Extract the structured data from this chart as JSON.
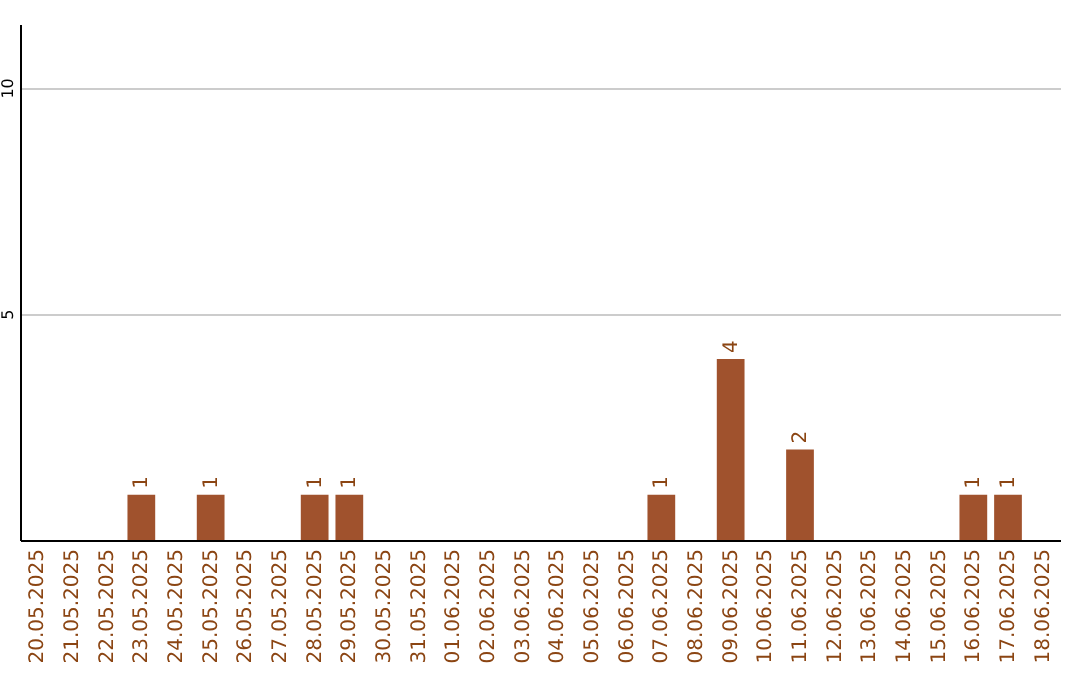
{
  "chart_data": {
    "type": "bar",
    "categories": [
      "20.05.2025",
      "21.05.2025",
      "22.05.2025",
      "23.05.2025",
      "24.05.2025",
      "25.05.2025",
      "26.05.2025",
      "27.05.2025",
      "28.05.2025",
      "29.05.2025",
      "30.05.2025",
      "31.05.2025",
      "01.06.2025",
      "02.06.2025",
      "03.06.2025",
      "04.06.2025",
      "05.06.2025",
      "06.06.2025",
      "07.06.2025",
      "08.06.2025",
      "09.06.2025",
      "10.06.2025",
      "11.06.2025",
      "12.06.2025",
      "13.06.2025",
      "14.06.2025",
      "15.06.2025",
      "16.06.2025",
      "17.06.2025",
      "18.06.2025"
    ],
    "values": [
      null,
      null,
      null,
      1,
      null,
      1,
      null,
      null,
      1,
      1,
      null,
      null,
      null,
      null,
      null,
      null,
      null,
      null,
      1,
      null,
      4,
      null,
      2,
      null,
      null,
      null,
      null,
      1,
      1,
      null
    ],
    "color": "#a0522d",
    "ylim": [
      0,
      11.4
    ],
    "yticks": [
      {
        "value": 0,
        "label": null
      },
      5,
      10
    ],
    "grid": "y",
    "data_labels": true
  }
}
